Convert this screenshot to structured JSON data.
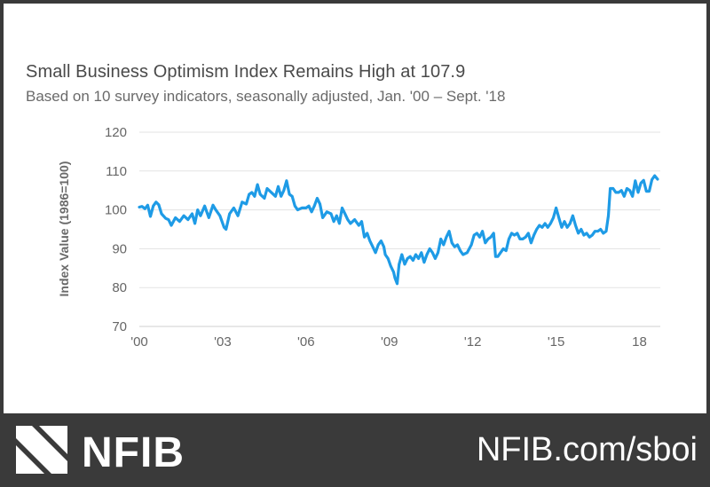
{
  "header": {
    "title": "Small Business Optimism Index Remains High at 107.9",
    "subtitle": "Based on 10 survey indicators, seasonally adjusted, Jan. '00 – Sept. '18"
  },
  "footer": {
    "brand": "NFIB",
    "url": "NFIB.com/sboi"
  },
  "colors": {
    "line": "#1e9be6",
    "axis_text": "#666666",
    "grid": "#e3e3e3",
    "footer_bg": "#3a3a3a"
  },
  "chart_data": {
    "type": "line",
    "title": "Small Business Optimism Index Remains High at 107.9",
    "subtitle": "Based on 10 survey indicators, seasonally adjusted, Jan. '00 – Sept. '18",
    "xlabel": "",
    "ylabel": "Index Value (1986=100)",
    "ylim": [
      70,
      120
    ],
    "yticks": [
      70,
      80,
      90,
      100,
      110,
      120
    ],
    "xlim": [
      2000.0,
      2018.75
    ],
    "xticks": [
      {
        "value": 2000,
        "label": "'00"
      },
      {
        "value": 2003,
        "label": "'03"
      },
      {
        "value": 2006,
        "label": "'06"
      },
      {
        "value": 2009,
        "label": "'09"
      },
      {
        "value": 2012,
        "label": "'12"
      },
      {
        "value": 2015,
        "label": "'15"
      },
      {
        "value": 2018,
        "label": "18"
      }
    ],
    "grid": "horizontal",
    "legend": "none",
    "series": [
      {
        "values": [
          [
            2000.0,
            100.7
          ],
          [
            2000.1,
            100.9
          ],
          [
            2000.2,
            100.3
          ],
          [
            2000.3,
            101.2
          ],
          [
            2000.4,
            98.3
          ],
          [
            2000.5,
            101.0
          ],
          [
            2000.6,
            102.0
          ],
          [
            2000.7,
            101.3
          ],
          [
            2000.8,
            99.0
          ],
          [
            2000.95,
            97.8
          ],
          [
            2001.05,
            97.5
          ],
          [
            2001.15,
            96.0
          ],
          [
            2001.3,
            98.0
          ],
          [
            2001.45,
            97.0
          ],
          [
            2001.6,
            98.5
          ],
          [
            2001.75,
            97.5
          ],
          [
            2001.9,
            99.0
          ],
          [
            2002.0,
            96.5
          ],
          [
            2002.1,
            100.0
          ],
          [
            2002.2,
            98.5
          ],
          [
            2002.35,
            101.0
          ],
          [
            2002.5,
            98.0
          ],
          [
            2002.65,
            101.2
          ],
          [
            2002.75,
            100.0
          ],
          [
            2002.9,
            98.5
          ],
          [
            2003.05,
            95.5
          ],
          [
            2003.12,
            95.0
          ],
          [
            2003.25,
            99.0
          ],
          [
            2003.4,
            100.5
          ],
          [
            2003.55,
            98.5
          ],
          [
            2003.7,
            102.0
          ],
          [
            2003.85,
            101.5
          ],
          [
            2003.95,
            104.0
          ],
          [
            2004.05,
            104.5
          ],
          [
            2004.15,
            103.5
          ],
          [
            2004.25,
            106.5
          ],
          [
            2004.35,
            104.0
          ],
          [
            2004.5,
            103.0
          ],
          [
            2004.6,
            105.5
          ],
          [
            2004.75,
            104.5
          ],
          [
            2004.9,
            103.5
          ],
          [
            2005.0,
            106.0
          ],
          [
            2005.1,
            103.5
          ],
          [
            2005.2,
            105.0
          ],
          [
            2005.3,
            107.5
          ],
          [
            2005.4,
            104.0
          ],
          [
            2005.5,
            103.5
          ],
          [
            2005.6,
            101.0
          ],
          [
            2005.7,
            100.0
          ],
          [
            2005.85,
            100.5
          ],
          [
            2006.0,
            100.5
          ],
          [
            2006.1,
            101.0
          ],
          [
            2006.2,
            99.5
          ],
          [
            2006.3,
            101.0
          ],
          [
            2006.4,
            103.0
          ],
          [
            2006.5,
            101.5
          ],
          [
            2006.6,
            98.0
          ],
          [
            2006.75,
            99.5
          ],
          [
            2006.9,
            99.0
          ],
          [
            2007.0,
            97.0
          ],
          [
            2007.1,
            98.5
          ],
          [
            2007.2,
            96.5
          ],
          [
            2007.3,
            100.5
          ],
          [
            2007.4,
            99.0
          ],
          [
            2007.5,
            97.5
          ],
          [
            2007.6,
            96.5
          ],
          [
            2007.75,
            97.5
          ],
          [
            2007.9,
            96.0
          ],
          [
            2008.0,
            97.0
          ],
          [
            2008.1,
            93.0
          ],
          [
            2008.2,
            94.0
          ],
          [
            2008.3,
            92.0
          ],
          [
            2008.4,
            90.5
          ],
          [
            2008.5,
            89.0
          ],
          [
            2008.6,
            91.0
          ],
          [
            2008.7,
            92.0
          ],
          [
            2008.8,
            90.5
          ],
          [
            2008.85,
            88.5
          ],
          [
            2008.95,
            87.5
          ],
          [
            2009.05,
            85.5
          ],
          [
            2009.15,
            84.0
          ],
          [
            2009.2,
            82.5
          ],
          [
            2009.28,
            81.0
          ],
          [
            2009.35,
            86.0
          ],
          [
            2009.45,
            88.5
          ],
          [
            2009.55,
            86.0
          ],
          [
            2009.65,
            87.5
          ],
          [
            2009.75,
            88.0
          ],
          [
            2009.85,
            87.0
          ],
          [
            2009.95,
            88.5
          ],
          [
            2010.05,
            87.5
          ],
          [
            2010.15,
            89.0
          ],
          [
            2010.25,
            86.5
          ],
          [
            2010.35,
            88.5
          ],
          [
            2010.45,
            90.0
          ],
          [
            2010.55,
            89.0
          ],
          [
            2010.65,
            87.5
          ],
          [
            2010.75,
            89.0
          ],
          [
            2010.85,
            92.5
          ],
          [
            2010.95,
            91.0
          ],
          [
            2011.05,
            93.0
          ],
          [
            2011.15,
            94.5
          ],
          [
            2011.25,
            91.5
          ],
          [
            2011.35,
            90.5
          ],
          [
            2011.45,
            91.0
          ],
          [
            2011.55,
            89.5
          ],
          [
            2011.65,
            88.5
          ],
          [
            2011.8,
            89.0
          ],
          [
            2011.95,
            91.0
          ],
          [
            2012.05,
            93.5
          ],
          [
            2012.15,
            94.0
          ],
          [
            2012.25,
            93.0
          ],
          [
            2012.35,
            94.5
          ],
          [
            2012.45,
            91.5
          ],
          [
            2012.55,
            92.5
          ],
          [
            2012.65,
            93.0
          ],
          [
            2012.75,
            94.0
          ],
          [
            2012.82,
            88.0
          ],
          [
            2012.9,
            88.0
          ],
          [
            2013.0,
            89.0
          ],
          [
            2013.1,
            90.0
          ],
          [
            2013.2,
            89.5
          ],
          [
            2013.3,
            92.5
          ],
          [
            2013.4,
            94.0
          ],
          [
            2013.5,
            93.5
          ],
          [
            2013.6,
            94.0
          ],
          [
            2013.7,
            92.5
          ],
          [
            2013.8,
            92.5
          ],
          [
            2013.9,
            93.0
          ],
          [
            2014.0,
            94.0
          ],
          [
            2014.1,
            91.5
          ],
          [
            2014.2,
            93.5
          ],
          [
            2014.3,
            95.0
          ],
          [
            2014.4,
            96.0
          ],
          [
            2014.5,
            95.5
          ],
          [
            2014.6,
            96.5
          ],
          [
            2014.7,
            95.5
          ],
          [
            2014.8,
            96.5
          ],
          [
            2014.9,
            98.0
          ],
          [
            2015.0,
            100.5
          ],
          [
            2015.1,
            98.0
          ],
          [
            2015.2,
            95.5
          ],
          [
            2015.3,
            97.0
          ],
          [
            2015.4,
            95.5
          ],
          [
            2015.5,
            96.5
          ],
          [
            2015.6,
            98.5
          ],
          [
            2015.7,
            96.0
          ],
          [
            2015.8,
            94.0
          ],
          [
            2015.9,
            95.0
          ],
          [
            2016.0,
            93.5
          ],
          [
            2016.1,
            94.0
          ],
          [
            2016.2,
            93.0
          ],
          [
            2016.3,
            93.5
          ],
          [
            2016.4,
            94.5
          ],
          [
            2016.5,
            94.5
          ],
          [
            2016.6,
            95.0
          ],
          [
            2016.7,
            94.0
          ],
          [
            2016.8,
            94.5
          ],
          [
            2016.88,
            98.5
          ],
          [
            2016.95,
            105.5
          ],
          [
            2017.05,
            105.5
          ],
          [
            2017.15,
            104.5
          ],
          [
            2017.25,
            104.5
          ],
          [
            2017.35,
            105.0
          ],
          [
            2017.45,
            103.5
          ],
          [
            2017.55,
            105.5
          ],
          [
            2017.65,
            105.0
          ],
          [
            2017.75,
            103.5
          ],
          [
            2017.85,
            107.5
          ],
          [
            2017.95,
            104.5
          ],
          [
            2018.05,
            106.9
          ],
          [
            2018.15,
            107.6
          ],
          [
            2018.25,
            104.8
          ],
          [
            2018.35,
            104.8
          ],
          [
            2018.45,
            107.8
          ],
          [
            2018.55,
            108.8
          ],
          [
            2018.65,
            107.9
          ]
        ]
      }
    ]
  }
}
